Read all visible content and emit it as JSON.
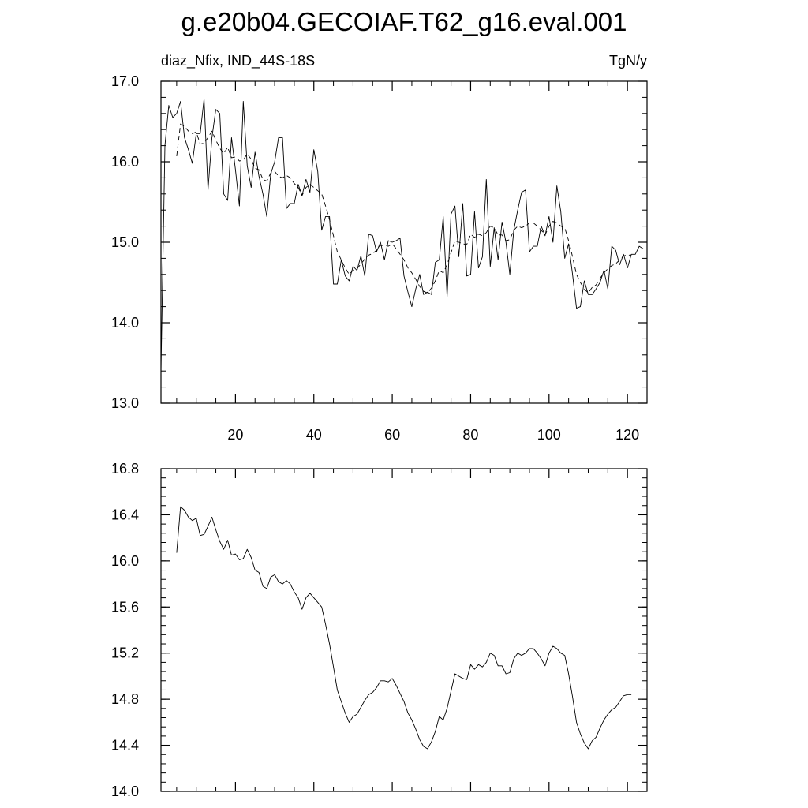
{
  "title": "g.e20b04.GECOIAF.T62_g16.eval.001",
  "chart_data": [
    {
      "type": "line",
      "left_label": "diaz_Nfix, IND_44S-18S",
      "right_label": "TgN/y",
      "xlim": [
        1,
        125
      ],
      "ylim": [
        13.0,
        17.0
      ],
      "x_ticks": [
        20,
        40,
        60,
        80,
        100,
        120
      ],
      "x_tick_labels": [
        "20",
        "40",
        "60",
        "80",
        "100",
        "120"
      ],
      "y_ticks": [
        13.0,
        14.0,
        15.0,
        16.0,
        17.0
      ],
      "y_tick_labels": [
        "13.0",
        "14.0",
        "15.0",
        "16.0",
        "17.0"
      ],
      "series": [
        {
          "style": "solid",
          "x_start": 1,
          "values": [
            13.4,
            16.2,
            16.7,
            16.55,
            16.6,
            16.75,
            16.3,
            16.15,
            15.98,
            16.35,
            16.35,
            16.78,
            15.65,
            16.3,
            16.65,
            16.6,
            15.6,
            15.52,
            16.3,
            15.9,
            15.45,
            16.75,
            15.95,
            15.68,
            16.12,
            15.82,
            15.6,
            15.32,
            15.85,
            16.0,
            16.3,
            16.3,
            15.42,
            15.48,
            15.48,
            15.72,
            15.58,
            15.78,
            15.62,
            16.15,
            15.88,
            15.15,
            15.32,
            15.32,
            14.48,
            14.48,
            14.78,
            14.58,
            14.52,
            14.7,
            14.65,
            14.83,
            14.58,
            15.1,
            15.08,
            14.88,
            15.0,
            14.78,
            15.02,
            15.0,
            15.02,
            15.05,
            14.58,
            14.38,
            14.2,
            14.42,
            14.6,
            14.35,
            14.38,
            14.35,
            14.75,
            14.78,
            15.32,
            14.32,
            15.35,
            15.45,
            14.82,
            15.48,
            14.58,
            14.6,
            15.38,
            14.68,
            14.82,
            15.78,
            14.7,
            15.18,
            14.78,
            15.25,
            15.0,
            14.6,
            15.15,
            15.4,
            15.62,
            15.65,
            14.88,
            14.95,
            14.95,
            15.2,
            15.08,
            15.32,
            15.0,
            15.7,
            15.38,
            14.8,
            14.98,
            14.6,
            14.18,
            14.2,
            14.52,
            14.35,
            14.35,
            14.42,
            14.5,
            14.65,
            14.42,
            14.95,
            14.9,
            14.72,
            14.85,
            14.68,
            14.85,
            14.85,
            14.95,
            14.92
          ]
        },
        {
          "style": "dashed",
          "x_start": 5,
          "values": [
            16.07,
            16.47,
            16.44,
            16.38,
            16.35,
            16.37,
            16.22,
            16.23,
            16.3,
            16.38,
            16.27,
            16.17,
            16.1,
            16.18,
            16.05,
            16.06,
            16.01,
            16.02,
            16.1,
            16.03,
            15.92,
            15.9,
            15.78,
            15.76,
            15.86,
            15.88,
            15.82,
            15.8,
            15.83,
            15.8,
            15.73,
            15.68,
            15.58,
            15.68,
            15.72,
            15.68,
            15.64,
            15.6,
            15.45,
            15.28,
            15.08,
            14.88,
            14.78,
            14.68,
            14.6,
            14.65,
            14.67,
            14.73,
            14.79,
            14.84,
            14.86,
            14.9,
            14.96,
            14.96,
            14.95,
            14.98,
            14.92,
            14.85,
            14.78,
            14.68,
            14.62,
            14.54,
            14.45,
            14.39,
            14.37,
            14.43,
            14.52,
            14.65,
            14.62,
            14.72,
            14.87,
            15.02,
            15.0,
            14.98,
            14.97,
            15.1,
            15.06,
            15.1,
            15.08,
            15.12,
            15.2,
            15.18,
            15.09,
            15.09,
            15.02,
            15.03,
            15.15,
            15.2,
            15.18,
            15.2,
            15.24,
            15.24,
            15.2,
            15.15,
            15.09,
            15.2,
            15.26,
            15.24,
            15.2,
            15.18,
            15.02,
            14.82,
            14.6,
            14.5,
            14.42,
            14.37,
            14.44,
            14.47,
            14.55,
            14.62,
            14.67,
            14.71,
            14.73,
            14.78,
            14.83,
            14.84,
            14.84
          ]
        }
      ]
    },
    {
      "type": "line",
      "xlim": [
        1,
        125
      ],
      "ylim": [
        14.0,
        16.8
      ],
      "x_ticks": [
        20,
        40,
        60,
        80,
        100,
        120
      ],
      "y_ticks": [
        14.0,
        14.4,
        14.8,
        15.2,
        15.6,
        16.0,
        16.4,
        16.8
      ],
      "y_tick_labels": [
        "14.0",
        "14.4",
        "14.8",
        "15.2",
        "15.6",
        "16.0",
        "16.4",
        "16.8"
      ],
      "series": [
        {
          "style": "solid",
          "x_start": 5,
          "values": [
            16.07,
            16.47,
            16.44,
            16.38,
            16.35,
            16.37,
            16.22,
            16.23,
            16.3,
            16.38,
            16.27,
            16.17,
            16.1,
            16.18,
            16.05,
            16.06,
            16.01,
            16.02,
            16.1,
            16.03,
            15.92,
            15.9,
            15.78,
            15.76,
            15.86,
            15.88,
            15.82,
            15.8,
            15.83,
            15.8,
            15.73,
            15.68,
            15.58,
            15.68,
            15.72,
            15.68,
            15.64,
            15.6,
            15.45,
            15.28,
            15.08,
            14.88,
            14.78,
            14.68,
            14.6,
            14.65,
            14.67,
            14.73,
            14.79,
            14.84,
            14.86,
            14.9,
            14.96,
            14.96,
            14.95,
            14.98,
            14.92,
            14.85,
            14.78,
            14.68,
            14.62,
            14.54,
            14.45,
            14.39,
            14.37,
            14.43,
            14.52,
            14.65,
            14.62,
            14.72,
            14.87,
            15.02,
            15.0,
            14.98,
            14.97,
            15.1,
            15.06,
            15.1,
            15.08,
            15.12,
            15.2,
            15.18,
            15.09,
            15.09,
            15.02,
            15.03,
            15.15,
            15.2,
            15.18,
            15.2,
            15.24,
            15.24,
            15.2,
            15.15,
            15.09,
            15.2,
            15.26,
            15.24,
            15.2,
            15.18,
            15.02,
            14.82,
            14.6,
            14.5,
            14.42,
            14.37,
            14.44,
            14.47,
            14.55,
            14.62,
            14.67,
            14.71,
            14.73,
            14.78,
            14.83,
            14.84,
            14.84
          ]
        }
      ]
    }
  ]
}
